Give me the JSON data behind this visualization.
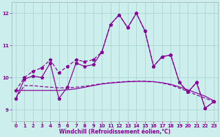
{
  "xlabel": "Windchill (Refroidissement éolien,°C)",
  "xlim": [
    -0.5,
    23.5
  ],
  "ylim": [
    8.65,
    12.35
  ],
  "yticks": [
    9,
    10,
    11,
    12
  ],
  "xticks": [
    0,
    1,
    2,
    3,
    4,
    5,
    6,
    7,
    8,
    9,
    10,
    11,
    12,
    13,
    14,
    15,
    16,
    17,
    18,
    19,
    20,
    21,
    22,
    23
  ],
  "bg_color": "#cceeed",
  "grid_color": "#aad4d2",
  "line_color": "#880099",
  "line1_y": [
    9.35,
    9.95,
    10.05,
    10.0,
    10.45,
    9.35,
    9.7,
    10.45,
    10.35,
    10.4,
    10.8,
    11.65,
    11.95,
    11.55,
    12.0,
    11.45,
    10.35,
    10.65,
    10.7,
    9.85,
    9.55,
    9.85,
    9.05,
    9.25
  ],
  "line2_y": [
    9.6,
    9.6,
    9.6,
    9.6,
    9.6,
    9.6,
    9.62,
    9.65,
    9.7,
    9.75,
    9.8,
    9.83,
    9.85,
    9.87,
    9.88,
    9.88,
    9.87,
    9.84,
    9.79,
    9.71,
    9.62,
    9.52,
    9.42,
    9.28
  ],
  "line3_y": [
    9.35,
    9.75,
    9.75,
    9.72,
    9.7,
    9.68,
    9.68,
    9.7,
    9.73,
    9.77,
    9.81,
    9.84,
    9.86,
    9.88,
    9.89,
    9.89,
    9.87,
    9.83,
    9.77,
    9.67,
    9.57,
    9.46,
    9.36,
    9.25
  ],
  "line4_y": [
    9.6,
    10.0,
    10.2,
    10.3,
    10.55,
    10.15,
    10.35,
    10.55,
    10.5,
    10.55,
    10.8,
    11.65,
    11.95,
    11.55,
    12.0,
    11.45,
    10.35,
    10.65,
    10.7,
    9.85,
    9.55,
    9.85,
    9.05,
    9.25
  ]
}
